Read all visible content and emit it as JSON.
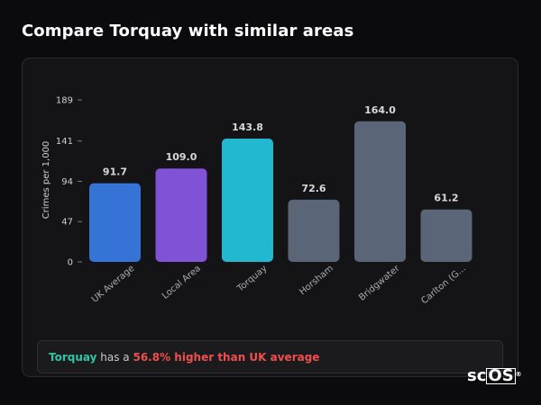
{
  "page": {
    "title": "Compare Torquay with similar areas"
  },
  "chart_data": {
    "type": "bar",
    "title": "",
    "xlabel": "",
    "ylabel": "Crimes per 1,000",
    "ylim": [
      0,
      189
    ],
    "yticks": [
      0,
      47,
      94,
      141,
      189
    ],
    "grid": false,
    "categories": [
      "UK Average",
      "Local Area",
      "Torquay",
      "Horsham",
      "Bridgwater",
      "Carlton (G..."
    ],
    "values": [
      91.7,
      109.0,
      143.8,
      72.6,
      164.0,
      61.2
    ],
    "value_labels": [
      "91.7",
      "109.0",
      "143.8",
      "72.6",
      "164.0",
      "61.2"
    ],
    "colors": [
      "#3574d6",
      "#7f52d6",
      "#22b8cf",
      "#5a6577",
      "#5a6577",
      "#5a6577"
    ]
  },
  "summary": {
    "area": "Torquay",
    "middle": "has a",
    "stat": "56.8% higher than UK average"
  },
  "logo": {
    "text_sc": "sc",
    "text_os": "OS",
    "mark": "®"
  }
}
